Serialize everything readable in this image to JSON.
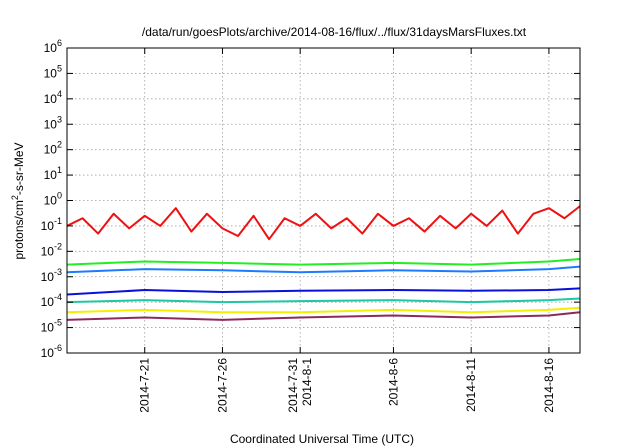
{
  "chart_data": {
    "type": "line",
    "title": "/data/run/goesPlots/archive/2014-08-16/flux/../flux/31daysMarsFluxes.txt",
    "xlabel": "Coordinated Universal Time (UTC)",
    "ylabel": {
      "prefix": "protons/cm",
      "sup": "2",
      "suffix": "-s-sr-MeV"
    },
    "y_scale": "log",
    "ylim": [
      1e-06,
      1000000.0
    ],
    "y_ticks": [
      {
        "base": "10",
        "exp": "-6",
        "value": 1e-06
      },
      {
        "base": "10",
        "exp": "-5",
        "value": 1e-05
      },
      {
        "base": "10",
        "exp": "-4",
        "value": 0.0001
      },
      {
        "base": "10",
        "exp": "-3",
        "value": 0.001
      },
      {
        "base": "10",
        "exp": "-2",
        "value": 0.01
      },
      {
        "base": "10",
        "exp": "-1",
        "value": 0.1
      },
      {
        "base": "10",
        "exp": "0",
        "value": 1
      },
      {
        "base": "10",
        "exp": "1",
        "value": 10
      },
      {
        "base": "10",
        "exp": "2",
        "value": 100
      },
      {
        "base": "10",
        "exp": "3",
        "value": 1000
      },
      {
        "base": "10",
        "exp": "4",
        "value": 10000
      },
      {
        "base": "10",
        "exp": "5",
        "value": 100000
      },
      {
        "base": "10",
        "exp": "6",
        "value": 1000000
      }
    ],
    "xlim": [
      "2014-07-16",
      "2014-08-18"
    ],
    "x_ticks": [
      {
        "date": "2014-07-21",
        "labels": [
          "2014-7-21"
        ]
      },
      {
        "date": "2014-07-26",
        "labels": [
          "2014-7-26"
        ]
      },
      {
        "date": "2014-07-31",
        "labels": [
          "2014-7-31",
          "2014-8-1"
        ]
      },
      {
        "date": "2014-08-06",
        "labels": [
          "2014-8-6"
        ]
      },
      {
        "date": "2014-08-11",
        "labels": [
          "2014-8-11"
        ]
      },
      {
        "date": "2014-08-16",
        "labels": [
          "2014-8-16"
        ]
      }
    ],
    "grid": true,
    "series": [
      {
        "color": "#ee1111",
        "x": [
          "2014-07-16",
          "2014-07-17",
          "2014-07-18",
          "2014-07-19",
          "2014-07-20",
          "2014-07-21",
          "2014-07-22",
          "2014-07-23",
          "2014-07-24",
          "2014-07-25",
          "2014-07-26",
          "2014-07-27",
          "2014-07-28",
          "2014-07-29",
          "2014-07-30",
          "2014-07-31",
          "2014-08-01",
          "2014-08-02",
          "2014-08-03",
          "2014-08-04",
          "2014-08-05",
          "2014-08-06",
          "2014-08-07",
          "2014-08-08",
          "2014-08-09",
          "2014-08-10",
          "2014-08-11",
          "2014-08-12",
          "2014-08-13",
          "2014-08-14",
          "2014-08-15",
          "2014-08-16",
          "2014-08-17",
          "2014-08-18"
        ],
        "y": [
          0.1,
          0.2,
          0.05,
          0.3,
          0.08,
          0.25,
          0.1,
          0.5,
          0.06,
          0.3,
          0.08,
          0.04,
          0.25,
          0.03,
          0.2,
          0.1,
          0.3,
          0.08,
          0.2,
          0.05,
          0.3,
          0.1,
          0.2,
          0.06,
          0.25,
          0.08,
          0.3,
          0.1,
          0.4,
          0.05,
          0.3,
          0.5,
          0.2,
          0.6
        ]
      },
      {
        "color": "#22ee22",
        "x": [
          "2014-07-16",
          "2014-07-21",
          "2014-07-26",
          "2014-07-31",
          "2014-08-06",
          "2014-08-11",
          "2014-08-16",
          "2014-08-18"
        ],
        "y": [
          0.003,
          0.004,
          0.0035,
          0.003,
          0.0035,
          0.003,
          0.004,
          0.005
        ]
      },
      {
        "color": "#1e7bff",
        "x": [
          "2014-07-16",
          "2014-07-21",
          "2014-07-26",
          "2014-07-31",
          "2014-08-06",
          "2014-08-11",
          "2014-08-16",
          "2014-08-18"
        ],
        "y": [
          0.0015,
          0.002,
          0.0018,
          0.0015,
          0.0018,
          0.0016,
          0.002,
          0.0025
        ]
      },
      {
        "color": "#0a10d8",
        "x": [
          "2014-07-16",
          "2014-07-21",
          "2014-07-26",
          "2014-07-31",
          "2014-08-06",
          "2014-08-11",
          "2014-08-16",
          "2014-08-18"
        ],
        "y": [
          0.0002,
          0.0003,
          0.00025,
          0.00028,
          0.0003,
          0.00028,
          0.0003,
          0.00035
        ]
      },
      {
        "color": "#1ec8a0",
        "x": [
          "2014-07-16",
          "2014-07-21",
          "2014-07-26",
          "2014-07-31",
          "2014-08-06",
          "2014-08-11",
          "2014-08-16",
          "2014-08-18"
        ],
        "y": [
          0.0001,
          0.00012,
          0.0001,
          0.00011,
          0.00012,
          0.0001,
          0.00012,
          0.00014
        ]
      },
      {
        "color": "#f2f000",
        "x": [
          "2014-07-16",
          "2014-07-21",
          "2014-07-26",
          "2014-07-31",
          "2014-08-06",
          "2014-08-11",
          "2014-08-16",
          "2014-08-18"
        ],
        "y": [
          4e-05,
          5e-05,
          4e-05,
          4e-05,
          5e-05,
          4e-05,
          5e-05,
          6e-05
        ]
      },
      {
        "color": "#8c2a5c",
        "x": [
          "2014-07-16",
          "2014-07-21",
          "2014-07-26",
          "2014-07-31",
          "2014-08-06",
          "2014-08-11",
          "2014-08-16",
          "2014-08-18"
        ],
        "y": [
          2e-05,
          2.5e-05,
          2e-05,
          2.5e-05,
          3e-05,
          2.5e-05,
          3e-05,
          4e-05
        ]
      }
    ]
  }
}
